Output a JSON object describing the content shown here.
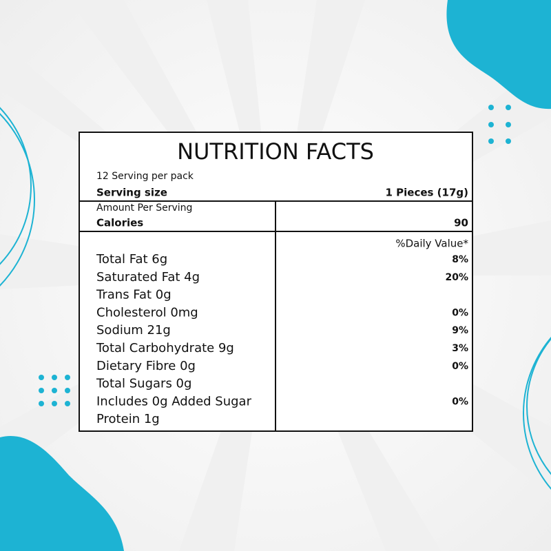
{
  "label": {
    "title": "NUTRITION FACTS",
    "servings_per_pack": "12 Serving per pack",
    "serving_size": {
      "label": "Serving size",
      "value": "1 Pieces (17g)"
    },
    "amount_per_serving": "Amount Per Serving",
    "calories": {
      "label": "Calories",
      "value": "90"
    },
    "daily_value_header": "%Daily Value*",
    "rows": [
      {
        "name": "Total Fat 6g",
        "dv": "8%"
      },
      {
        "name": "Saturated Fat 4g",
        "dv": "20%"
      },
      {
        "name": "Trans Fat 0g"
      },
      {
        "name": "Cholesterol 0mg",
        "dv": "0%"
      },
      {
        "name": "Sodium 21g",
        "dv": "9%"
      },
      {
        "name": "Total Carbohydrate 9g",
        "dv": "3%"
      },
      {
        "name": "Dietary Fibre 0g",
        "dv": "0%"
      },
      {
        "name": "Total Sugars 0g"
      },
      {
        "name": "Includes 0g Added Sugar",
        "dv": "0%"
      },
      {
        "name": "Protein 1g"
      }
    ]
  }
}
